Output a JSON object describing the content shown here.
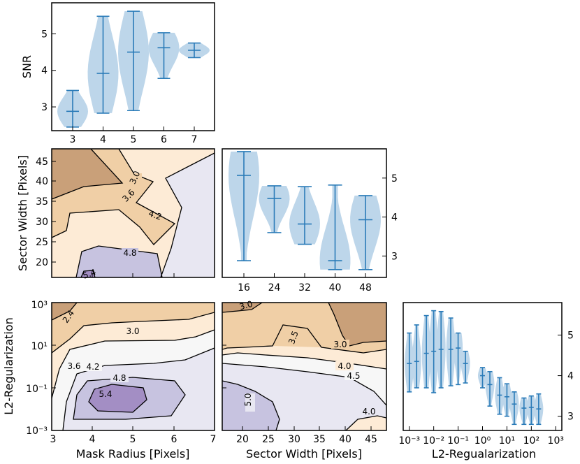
{
  "chart_data": [
    {
      "id": "snr_vs_mask_radius",
      "type": "violin",
      "ylabel": "SNR",
      "categories": [
        "3",
        "4",
        "5",
        "6",
        "7"
      ],
      "ylim": [
        2.35,
        5.85
      ],
      "yticks": [
        "3",
        "4",
        "5"
      ],
      "series": [
        {
          "values": [
            {
              "min": 2.45,
              "max": 3.45,
              "median": 2.88
            },
            {
              "min": 2.83,
              "max": 5.48,
              "median": 3.92
            },
            {
              "min": 2.9,
              "max": 5.62,
              "median": 4.5
            },
            {
              "min": 3.78,
              "max": 5.03,
              "median": 4.62
            },
            {
              "min": 4.35,
              "max": 4.75,
              "median": 4.55
            }
          ]
        }
      ]
    },
    {
      "id": "snr_vs_sector_width",
      "type": "violin",
      "categories": [
        "16",
        "24",
        "32",
        "40",
        "48"
      ],
      "ylim": [
        2.45,
        5.75
      ],
      "yticks": [
        "3",
        "4",
        "5"
      ],
      "series": [
        {
          "values": [
            {
              "min": 2.88,
              "max": 5.68,
              "median": 5.07
            },
            {
              "min": 3.6,
              "max": 4.8,
              "median": 4.48
            },
            {
              "min": 3.3,
              "max": 4.78,
              "median": 3.82
            },
            {
              "min": 2.65,
              "max": 4.82,
              "median": 2.88
            },
            {
              "min": 2.65,
              "max": 4.55,
              "median": 3.93
            }
          ]
        }
      ]
    },
    {
      "id": "snr_vs_l2",
      "type": "violin",
      "xlabel": "L2-Regualarization",
      "xscale": "log",
      "xticks": [
        "10⁻³",
        "10⁻²",
        "10⁻¹",
        "10⁰",
        "10¹",
        "10²",
        "10³"
      ],
      "yticks": [
        "3",
        "4",
        "5"
      ],
      "ylim": [
        2.65,
        5.8
      ],
      "series": [
        {
          "values": [
            {
              "x": 0.001,
              "min": 3.6,
              "max": 5.05,
              "median": 4.3
            },
            {
              "x": 0.002,
              "min": 3.7,
              "max": 5.25,
              "median": 4.35
            },
            {
              "x": 0.005,
              "min": 3.7,
              "max": 5.48,
              "median": 4.55
            },
            {
              "x": 0.01,
              "min": 3.58,
              "max": 5.6,
              "median": 4.6
            },
            {
              "x": 0.02,
              "min": 3.7,
              "max": 5.58,
              "median": 4.65
            },
            {
              "x": 0.05,
              "min": 3.75,
              "max": 5.42,
              "median": 4.65
            },
            {
              "x": 0.1,
              "min": 3.78,
              "max": 5.05,
              "median": 4.68
            },
            {
              "x": 0.2,
              "min": 3.82,
              "max": 4.6,
              "median": 4.3
            },
            {
              "x": 1,
              "min": 3.7,
              "max": 4.2,
              "median": 4.0
            },
            {
              "x": 2,
              "min": 3.25,
              "max": 4.1,
              "median": 3.78
            },
            {
              "x": 5,
              "min": 3.05,
              "max": 3.95,
              "median": 3.52
            },
            {
              "x": 10,
              "min": 3.0,
              "max": 3.8,
              "median": 3.48
            },
            {
              "x": 20,
              "min": 2.8,
              "max": 3.6,
              "median": 3.3
            },
            {
              "x": 50,
              "min": 2.8,
              "max": 3.45,
              "median": 3.2
            },
            {
              "x": 100,
              "min": 2.8,
              "max": 3.5,
              "median": 3.22
            },
            {
              "x": 200,
              "min": 2.8,
              "max": 3.55,
              "median": 3.18
            }
          ]
        }
      ]
    },
    {
      "id": "contour_sector_vs_mask",
      "type": "heatmap",
      "ylabel": "Sector Width [Pixels]",
      "xlim": [
        3,
        7
      ],
      "ylim": [
        16,
        48
      ],
      "yticks": [
        "20",
        "25",
        "30",
        "35",
        "40",
        "45"
      ],
      "contour_labels": [
        "3.0",
        "3.6",
        "4.2",
        "4.8",
        "5.4"
      ]
    },
    {
      "id": "contour_l2_vs_mask",
      "type": "heatmap",
      "xlabel": "Mask Radius [Pixels]",
      "ylabel": "L2-Regularization",
      "xlim": [
        3,
        7
      ],
      "yscale": "log",
      "xticks": [
        "3",
        "4",
        "5",
        "6",
        "7"
      ],
      "yticks": [
        "10³",
        "10¹",
        "10⁻¹",
        "10⁻³"
      ],
      "contour_labels": [
        "2.4",
        "3.0",
        "3.6",
        "4.2",
        "4.8",
        "5.4"
      ]
    },
    {
      "id": "contour_l2_vs_sector",
      "type": "heatmap",
      "xlabel": "Sector Width [Pixels]",
      "xlim": [
        16,
        48
      ],
      "yscale": "log",
      "xticks": [
        "20",
        "25",
        "30",
        "35",
        "40",
        "45"
      ],
      "contour_labels": [
        "3.0",
        "3.5",
        "3.0",
        "4.0",
        "4.5",
        "5.0",
        "4.0"
      ]
    }
  ],
  "colors": {
    "violin_fill": "#bdd6ea",
    "violin_line": "#2a7bb8",
    "dark_orange": "#c9a079",
    "mid_orange": "#f0cfa6",
    "light_orange": "#fdebd6",
    "neutral": "#f7f7f7",
    "light_purple": "#e8e7f2",
    "mid_purple": "#c7c3e0",
    "dark_purple": "#a38ec4"
  }
}
